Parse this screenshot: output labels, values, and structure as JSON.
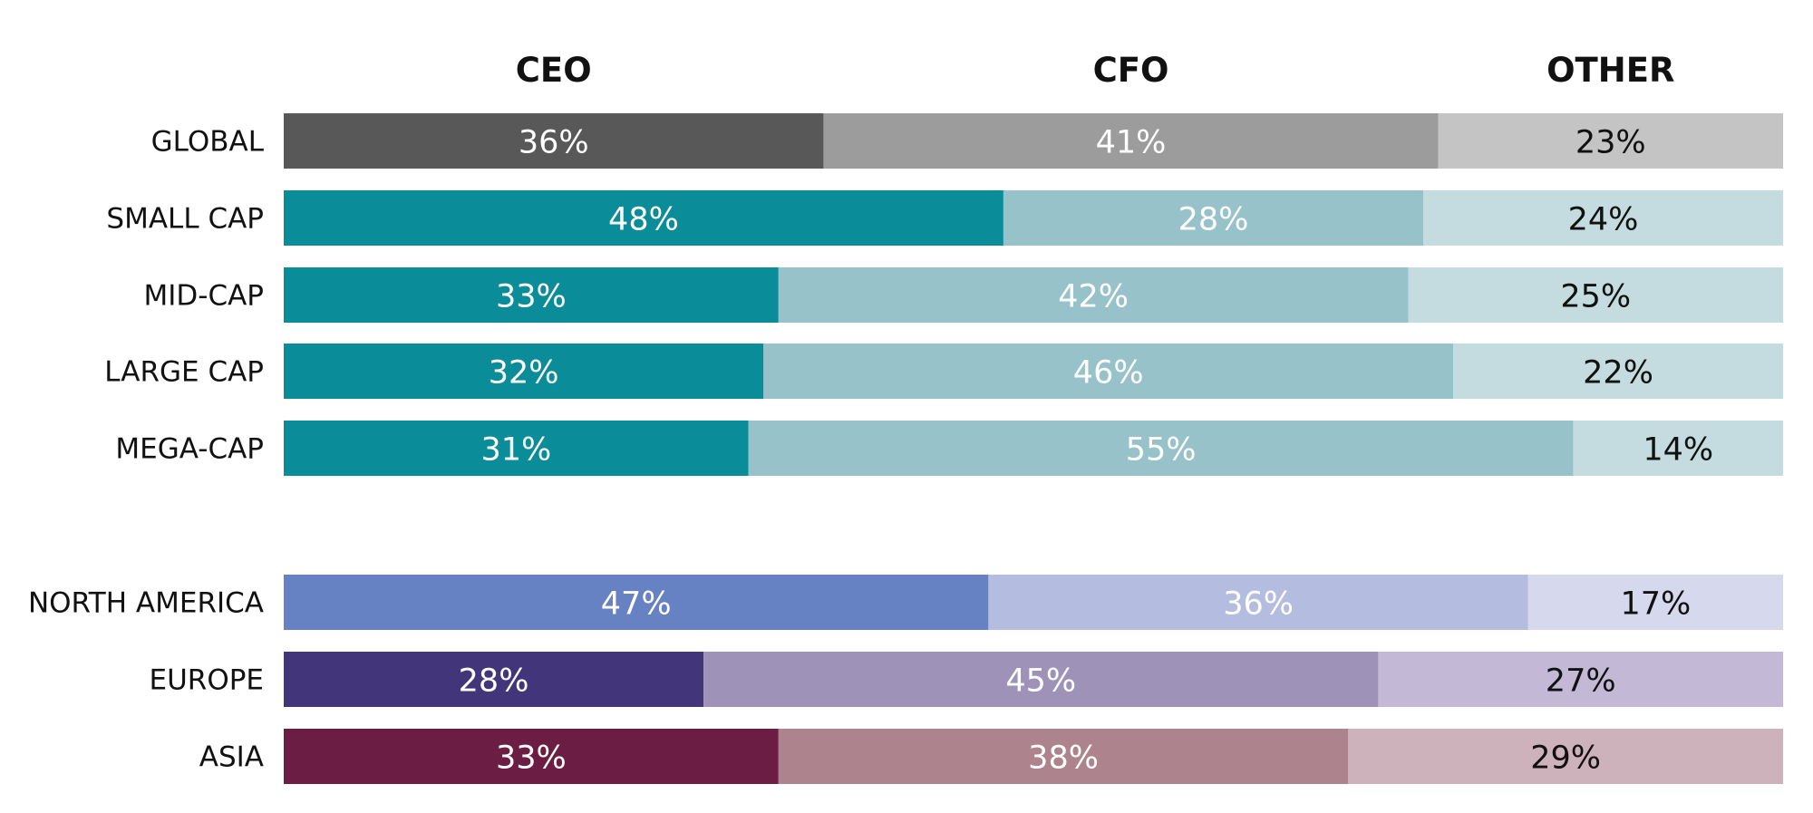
{
  "chart_data": {
    "type": "bar",
    "orientation": "horizontal",
    "stacked": true,
    "percent_stacked": true,
    "segments": [
      "CEO",
      "CFO",
      "OTHER"
    ],
    "rows": [
      {
        "label": "GLOBAL",
        "values": [
          36,
          41,
          23
        ],
        "value_labels": [
          "36%",
          "41%",
          "23%"
        ],
        "colors": [
          "#585858",
          "#9c9c9c",
          "#c4c4c4"
        ],
        "text_colors": [
          "#ffffff",
          "#ffffff",
          "#111111"
        ]
      },
      {
        "label": "SMALL CAP",
        "values": [
          48,
          28,
          24
        ],
        "value_labels": [
          "48%",
          "28%",
          "24%"
        ],
        "colors": [
          "#0a8c99",
          "#97c2c9",
          "#c4dcdf"
        ],
        "text_colors": [
          "#ffffff",
          "#ffffff",
          "#111111"
        ]
      },
      {
        "label": "MID-CAP",
        "values": [
          33,
          42,
          25
        ],
        "value_labels": [
          "33%",
          "42%",
          "25%"
        ],
        "colors": [
          "#0a8c99",
          "#97c2c9",
          "#c4dcdf"
        ],
        "text_colors": [
          "#ffffff",
          "#ffffff",
          "#111111"
        ]
      },
      {
        "label": "LARGE CAP",
        "values": [
          32,
          46,
          22
        ],
        "value_labels": [
          "32%",
          "46%",
          "22%"
        ],
        "colors": [
          "#0a8c99",
          "#97c2c9",
          "#c4dcdf"
        ],
        "text_colors": [
          "#ffffff",
          "#ffffff",
          "#111111"
        ]
      },
      {
        "label": "MEGA-CAP",
        "values": [
          31,
          55,
          14
        ],
        "value_labels": [
          "31%",
          "55%",
          "14%"
        ],
        "colors": [
          "#0a8c99",
          "#97c2c9",
          "#c4dcdf"
        ],
        "text_colors": [
          "#ffffff",
          "#ffffff",
          "#111111"
        ]
      },
      {
        "label": "NORTH AMERICA",
        "values": [
          47,
          36,
          17
        ],
        "value_labels": [
          "47%",
          "36%",
          "17%"
        ],
        "colors": [
          "#6782c2",
          "#b4bde0",
          "#d6d9ee"
        ],
        "text_colors": [
          "#ffffff",
          "#ffffff",
          "#111111"
        ]
      },
      {
        "label": "EUROPE",
        "values": [
          28,
          45,
          27
        ],
        "value_labels": [
          "28%",
          "45%",
          "27%"
        ],
        "colors": [
          "#43357a",
          "#9e92b9",
          "#c3b9d6"
        ],
        "text_colors": [
          "#ffffff",
          "#ffffff",
          "#111111"
        ]
      },
      {
        "label": "ASIA",
        "values": [
          33,
          38,
          29
        ],
        "value_labels": [
          "33%",
          "38%",
          "29%"
        ],
        "colors": [
          "#6b1d43",
          "#ad838e",
          "#cdb2bc"
        ],
        "text_colors": [
          "#ffffff",
          "#ffffff",
          "#111111"
        ]
      }
    ],
    "groups": [
      [
        0,
        1,
        2,
        3,
        4
      ],
      [
        5,
        6,
        7
      ]
    ],
    "xlim": [
      0,
      100
    ],
    "grid": false,
    "legend": "top (column headers)"
  }
}
